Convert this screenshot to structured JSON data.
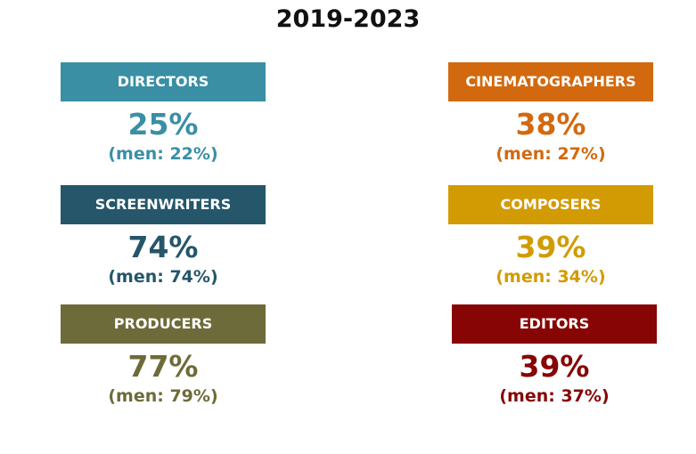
{
  "title": "2019-2023",
  "chart_data": {
    "type": "table",
    "title": "2019-2023",
    "categories": [
      "DIRECTORS",
      "CINEMATOGRAPHERS",
      "SCREENWRITERS",
      "COMPOSERS",
      "PRODUCERS",
      "EDITORS"
    ],
    "series": [
      {
        "values": [
          25,
          38,
          74,
          39,
          77,
          39
        ]
      },
      {
        "name": "men",
        "values": [
          22,
          27,
          74,
          34,
          79,
          37
        ]
      }
    ],
    "items": [
      {
        "label": "DIRECTORS",
        "value": "25%",
        "men": "(men: 22%)",
        "color": "#3a8fa5"
      },
      {
        "label": "CINEMATOGRAPHERS",
        "value": "38%",
        "men": "(men: 27%)",
        "color": "#d3690e"
      },
      {
        "label": "SCREENWRITERS",
        "value": "74%",
        "men": "(men: 74%)",
        "color": "#25566a"
      },
      {
        "label": "COMPOSERS",
        "value": "39%",
        "men": "(men: 34%)",
        "color": "#d29b04"
      },
      {
        "label": "PRODUCERS",
        "value": "77%",
        "men": "(men: 79%)",
        "color": "#6e6b3a"
      },
      {
        "label": "EDITORS",
        "value": "39%",
        "men": "(men: 37%)",
        "color": "#870505"
      }
    ]
  }
}
